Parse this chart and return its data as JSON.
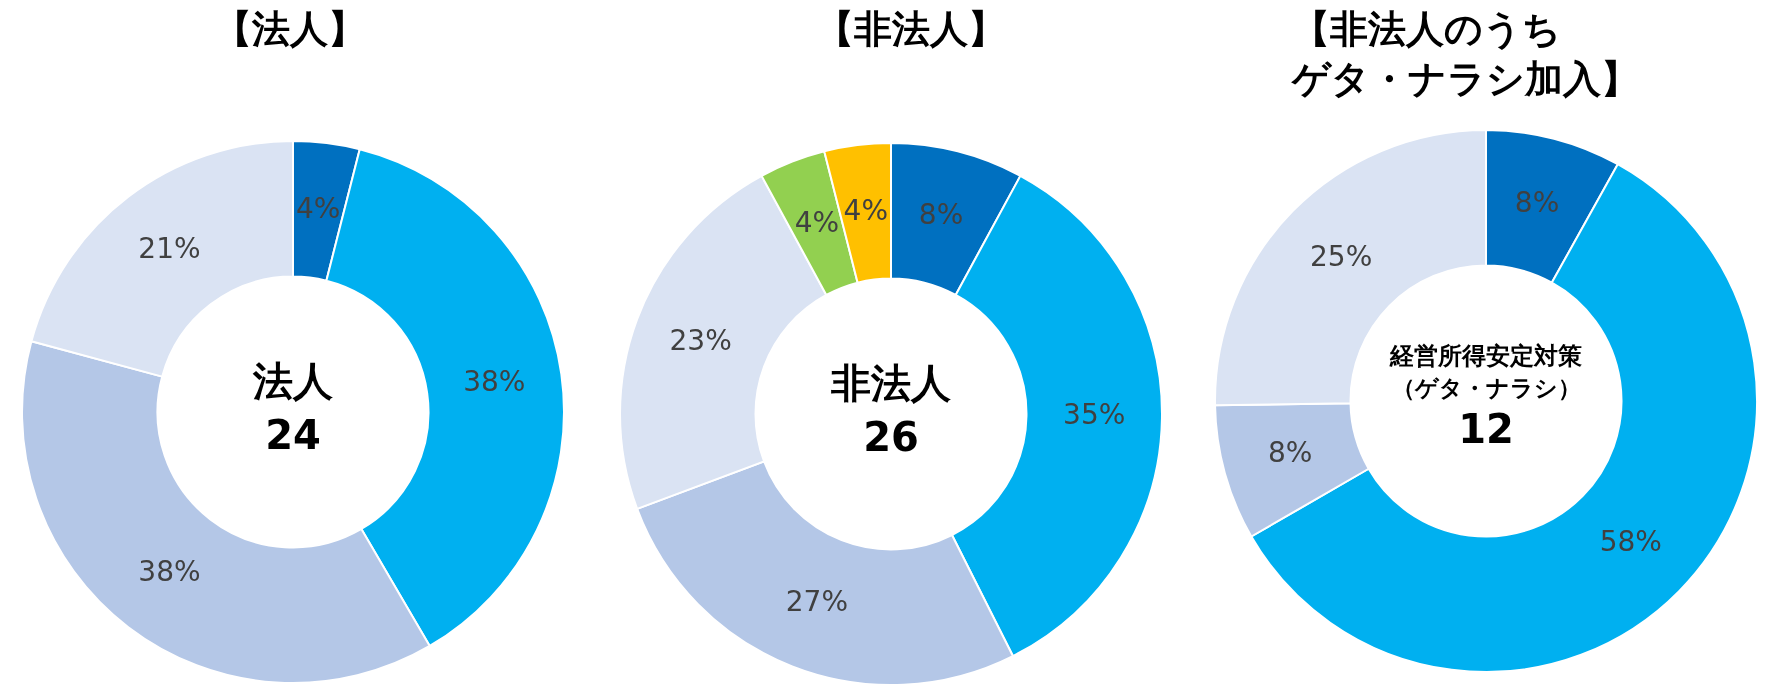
{
  "chart_data": [
    {
      "type": "donut",
      "title": "【法人】",
      "categories": [
        null,
        null,
        null,
        null
      ],
      "values": [
        4,
        38,
        38,
        21
      ],
      "colors": [
        "#0070c0",
        "#00b0f0",
        "#b4c7e7",
        "#dae3f3"
      ],
      "value_labels": [
        "4%",
        "38%",
        "38%",
        "21%"
      ],
      "annotations": [
        "法人",
        "24"
      ]
    },
    {
      "type": "donut",
      "title": "【非法人】",
      "categories": [
        null,
        null,
        null,
        null,
        null,
        null
      ],
      "values": [
        8,
        35,
        27,
        23,
        4,
        4
      ],
      "colors": [
        "#0070c0",
        "#00b0f0",
        "#b4c7e7",
        "#dae3f3",
        "#92d050",
        "#ffc000"
      ],
      "value_labels": [
        "8%",
        "35%",
        "27%",
        "23%",
        "4%",
        "4%"
      ],
      "annotations": [
        "非法人",
        "26"
      ]
    },
    {
      "type": "donut",
      "title": "【非法人のうちゲタ・ナラシ加入】",
      "categories": [
        null,
        null,
        null,
        null
      ],
      "values": [
        8,
        58,
        8,
        25
      ],
      "colors": [
        "#0070c0",
        "#00b0f0",
        "#b4c7e7",
        "#dae3f3"
      ],
      "value_labels": [
        "8%",
        "58%",
        "8%",
        "25%"
      ],
      "annotations": [
        "経営所得安定対策",
        "（ゲタ・ナラシ）",
        "12"
      ]
    }
  ]
}
